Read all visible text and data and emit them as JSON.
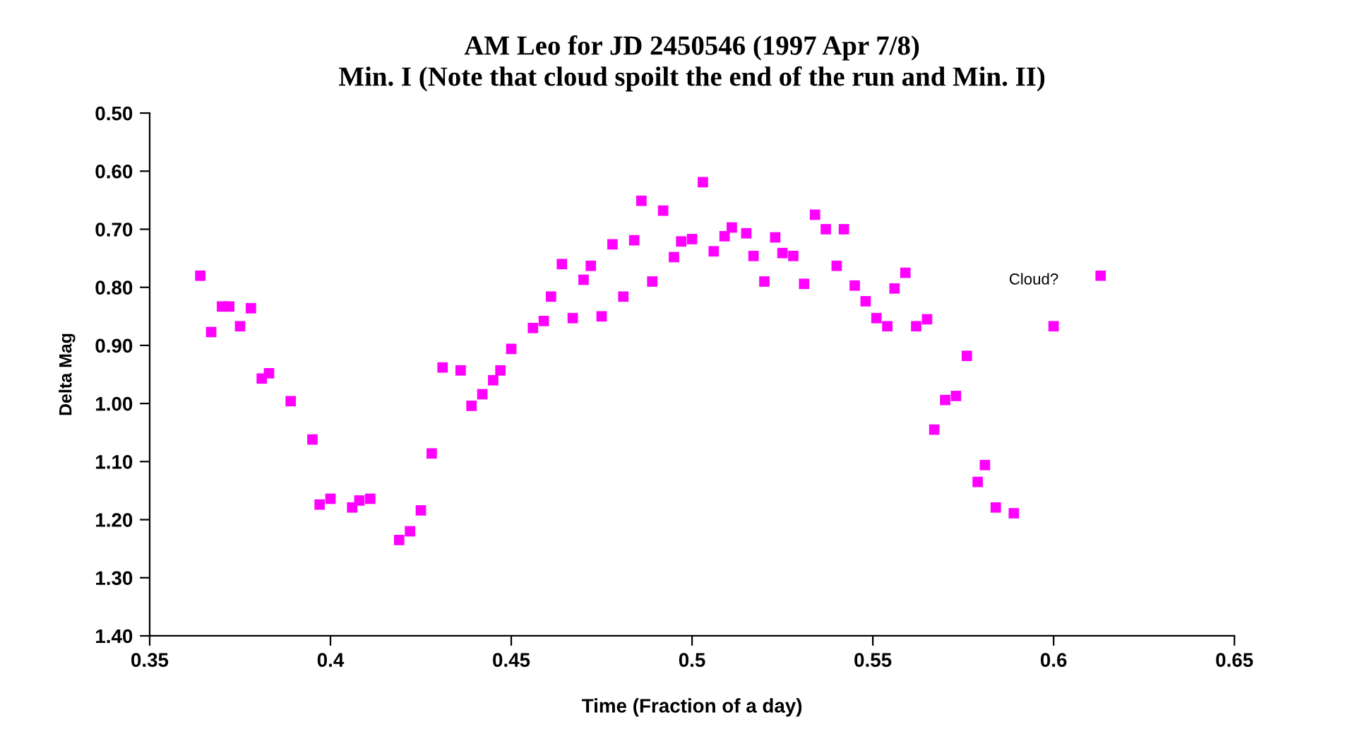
{
  "chart_data": {
    "type": "scatter",
    "title": "AM Leo for JD 2450546 (1997 Apr 7/8)\nMin. I (Note that cloud spoilt the end of the run and Min. II)",
    "xlabel": "Time (Fraction of a day)",
    "ylabel": "Delta Mag",
    "xlim": [
      0.35,
      0.65
    ],
    "xticks": [
      0.35,
      0.4,
      0.45,
      0.5,
      0.55,
      0.6,
      0.65
    ],
    "ylim": [
      1.4,
      0.5
    ],
    "yticks": [
      {
        "value": 0.5,
        "label": "0.50"
      },
      {
        "value": 0.6,
        "label": "0.60"
      },
      {
        "value": 0.7,
        "label": "0.70"
      },
      {
        "value": 0.8,
        "label": "0.80"
      },
      {
        "value": 0.9,
        "label": "0.90"
      },
      {
        "value": 1.0,
        "label": "1.00"
      },
      {
        "value": 1.1,
        "label": "1.10"
      },
      {
        "value": 1.2,
        "label": "1.20"
      },
      {
        "value": 1.3,
        "label": "1.30"
      },
      {
        "value": 1.4,
        "label": "1.40"
      }
    ],
    "grid": false,
    "legend": false,
    "marker": "square",
    "annotations": [
      "Cloud?"
    ],
    "series": [
      {
        "color": "#ff00ff",
        "x": [
          0.364,
          0.367,
          0.37,
          0.372,
          0.375,
          0.378,
          0.381,
          0.383,
          0.389,
          0.395,
          0.397,
          0.4,
          0.406,
          0.408,
          0.411,
          0.419,
          0.422,
          0.425,
          0.428,
          0.431,
          0.436,
          0.439,
          0.442,
          0.445,
          0.447,
          0.45,
          0.456,
          0.459,
          0.461,
          0.464,
          0.467,
          0.47,
          0.472,
          0.475,
          0.478,
          0.481,
          0.484,
          0.486,
          0.489,
          0.492,
          0.495,
          0.497,
          0.5,
          0.503,
          0.506,
          0.509,
          0.511,
          0.515,
          0.517,
          0.52,
          0.523,
          0.525,
          0.528,
          0.531,
          0.534,
          0.537,
          0.54,
          0.542,
          0.545,
          0.548,
          0.551,
          0.554,
          0.556,
          0.559,
          0.562,
          0.565,
          0.567,
          0.57,
          0.573,
          0.576,
          0.579,
          0.581,
          0.584,
          0.589,
          0.6,
          0.613
        ],
        "values": [
          0.78,
          0.877,
          0.833,
          0.833,
          0.867,
          0.836,
          0.957,
          0.948,
          0.996,
          1.062,
          1.174,
          1.164,
          1.179,
          1.167,
          1.164,
          1.235,
          1.22,
          1.184,
          1.086,
          0.938,
          0.943,
          1.004,
          0.984,
          0.96,
          0.943,
          0.906,
          0.87,
          0.858,
          0.816,
          0.76,
          0.853,
          0.787,
          0.763,
          0.85,
          0.726,
          0.816,
          0.719,
          0.651,
          0.79,
          0.668,
          0.748,
          0.721,
          0.717,
          0.619,
          0.738,
          0.712,
          0.697,
          0.707,
          0.746,
          0.79,
          0.714,
          0.741,
          0.746,
          0.794,
          0.675,
          0.7,
          0.763,
          0.7,
          0.797,
          0.824,
          0.853,
          0.867,
          0.802,
          0.775,
          0.867,
          0.855,
          1.045,
          0.994,
          0.987,
          0.918,
          1.135,
          1.106,
          1.179,
          1.189,
          0.867,
          0.78
        ]
      }
    ]
  }
}
